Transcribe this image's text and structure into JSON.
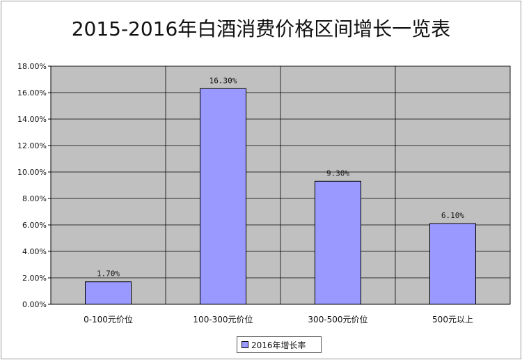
{
  "chart_data": {
    "type": "bar",
    "title": "2015-2016年白酒消费价格区间增长一览表",
    "categories": [
      "0-100元价位",
      "100-300元价位",
      "300-500元价位",
      "500元以上"
    ],
    "series": [
      {
        "name": "2016年增长率",
        "values": [
          1.7,
          16.3,
          9.3,
          6.1
        ]
      }
    ],
    "data_labels": [
      "1.70%",
      "16.30%",
      "9.30%",
      "6.10%"
    ],
    "ylim": [
      0,
      18
    ],
    "y_ticks": [
      "0.00%",
      "2.00%",
      "4.00%",
      "6.00%",
      "8.00%",
      "10.00%",
      "12.00%",
      "14.00%",
      "16.00%",
      "18.00%"
    ],
    "grid": true,
    "legend_position": "bottom",
    "colors": {
      "bar": "#9999ff",
      "plot_bg": "#c0c0c0",
      "grid": "#000000"
    }
  }
}
